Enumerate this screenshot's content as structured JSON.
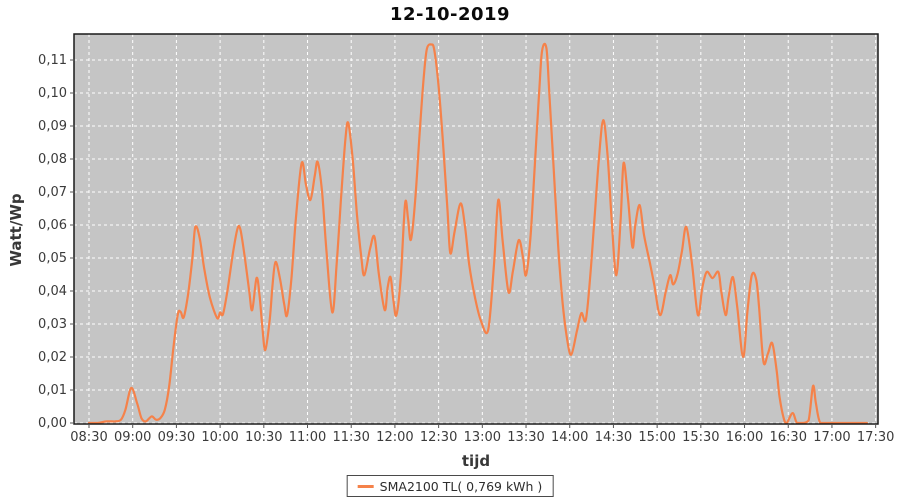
{
  "title": "12-10-2019",
  "legend": {
    "label": "SMA2100 TL( 0,769 kWh )"
  },
  "colors": {
    "series": "#F5824A",
    "plot_background": "#C5C5C5",
    "gridline": "#FFFFFF",
    "plot_border": "#1a1a1a",
    "tick_text": "#3b3b3b"
  },
  "chart_data": {
    "type": "line",
    "title": "12-10-2019",
    "xlabel": "tijd",
    "ylabel": "Watt/Wp",
    "legend_position": "bottom-center",
    "grid": true,
    "x_tick_labels": [
      "08:30",
      "09:00",
      "09:30",
      "10:00",
      "10:30",
      "11:00",
      "11:30",
      "12:00",
      "12:30",
      "13:00",
      "13:30",
      "14:00",
      "14:30",
      "15:00",
      "15:30",
      "16:00",
      "16:30",
      "17:00",
      "17:30"
    ],
    "y_tick_labels": [
      "0,00",
      "0,01",
      "0,02",
      "0,03",
      "0,04",
      "0,05",
      "0,06",
      "0,07",
      "0,08",
      "0,09",
      "0,10",
      "0,11"
    ],
    "y_tick_values": [
      0,
      0.01,
      0.02,
      0.03,
      0.04,
      0.05,
      0.06,
      0.07,
      0.08,
      0.09,
      0.1,
      0.11
    ],
    "ylim": [
      0,
      0.118
    ],
    "x_unit": "minutes after 08:30",
    "series": [
      {
        "name": "SMA2100 TL( 0,769 kWh )",
        "color": "#F5824A",
        "points": [
          [
            0,
            0
          ],
          [
            6,
            0
          ],
          [
            12,
            0.0005
          ],
          [
            18,
            0.0005
          ],
          [
            22,
            0.001
          ],
          [
            25,
            0.004
          ],
          [
            29,
            0.0106
          ],
          [
            33,
            0.006
          ],
          [
            36,
            0.0015
          ],
          [
            39,
            0.0005
          ],
          [
            43,
            0.002
          ],
          [
            46,
            0.001
          ],
          [
            49,
            0.0015
          ],
          [
            52,
            0.004
          ],
          [
            55,
            0.011
          ],
          [
            58,
            0.023
          ],
          [
            61,
            0.033
          ],
          [
            63,
            0.0336
          ],
          [
            65,
            0.032
          ],
          [
            68,
            0.039
          ],
          [
            71,
            0.05
          ],
          [
            73,
            0.0594
          ],
          [
            76,
            0.056
          ],
          [
            79,
            0.047
          ],
          [
            83,
            0.038
          ],
          [
            88,
            0.0318
          ],
          [
            90,
            0.0335
          ],
          [
            92,
            0.033
          ],
          [
            95,
            0.04
          ],
          [
            99,
            0.052
          ],
          [
            102,
            0.059
          ],
          [
            104,
            0.0585
          ],
          [
            107,
            0.05
          ],
          [
            110,
            0.04
          ],
          [
            112,
            0.0342
          ],
          [
            115,
            0.0439
          ],
          [
            117,
            0.039
          ],
          [
            119,
            0.029
          ],
          [
            121,
            0.0221
          ],
          [
            124,
            0.031
          ],
          [
            126,
            0.042
          ],
          [
            128,
            0.0488
          ],
          [
            131,
            0.044
          ],
          [
            134,
            0.036
          ],
          [
            136,
            0.0327
          ],
          [
            139,
            0.044
          ],
          [
            142,
            0.062
          ],
          [
            146,
            0.0788
          ],
          [
            149,
            0.072
          ],
          [
            152,
            0.0676
          ],
          [
            155,
            0.075
          ],
          [
            157,
            0.0791
          ],
          [
            160,
            0.07
          ],
          [
            163,
            0.052
          ],
          [
            167,
            0.0335
          ],
          [
            170,
            0.048
          ],
          [
            173,
            0.068
          ],
          [
            176,
            0.086
          ],
          [
            178,
            0.0909
          ],
          [
            181,
            0.08
          ],
          [
            184,
            0.063
          ],
          [
            187,
            0.05
          ],
          [
            189,
            0.0448
          ],
          [
            193,
            0.053
          ],
          [
            196,
            0.0564
          ],
          [
            199,
            0.045
          ],
          [
            203,
            0.0342
          ],
          [
            205,
            0.041
          ],
          [
            207,
            0.0442
          ],
          [
            209,
            0.037
          ],
          [
            211,
            0.0327
          ],
          [
            214,
            0.044
          ],
          [
            217,
            0.0665
          ],
          [
            219,
            0.062
          ],
          [
            221,
            0.0555
          ],
          [
            224,
            0.068
          ],
          [
            227,
            0.088
          ],
          [
            230,
            0.106
          ],
          [
            232,
            0.1135
          ],
          [
            235,
            0.1147
          ],
          [
            237,
            0.113
          ],
          [
            240,
            0.102
          ],
          [
            243,
            0.085
          ],
          [
            246,
            0.065
          ],
          [
            248,
            0.0515
          ],
          [
            251,
            0.058
          ],
          [
            255,
            0.0665
          ],
          [
            258,
            0.06
          ],
          [
            261,
            0.048
          ],
          [
            265,
            0.038
          ],
          [
            269,
            0.031
          ],
          [
            274,
            0.0282
          ],
          [
            278,
            0.048
          ],
          [
            281,
            0.0676
          ],
          [
            284,
            0.055
          ],
          [
            288,
            0.0397
          ],
          [
            291,
            0.046
          ],
          [
            295,
            0.0554
          ],
          [
            298,
            0.05
          ],
          [
            300,
            0.0448
          ],
          [
            303,
            0.056
          ],
          [
            306,
            0.078
          ],
          [
            309,
            0.1
          ],
          [
            311,
            0.1128
          ],
          [
            314,
            0.1136
          ],
          [
            316,
            0.1
          ],
          [
            319,
            0.077
          ],
          [
            322,
            0.054
          ],
          [
            325,
            0.037
          ],
          [
            328,
            0.026
          ],
          [
            331,
            0.0207
          ],
          [
            335,
            0.028
          ],
          [
            338,
            0.0333
          ],
          [
            341,
            0.0312
          ],
          [
            344,
            0.044
          ],
          [
            347,
            0.062
          ],
          [
            350,
            0.08
          ],
          [
            353,
            0.0918
          ],
          [
            356,
            0.081
          ],
          [
            359,
            0.06
          ],
          [
            362,
            0.0448
          ],
          [
            365,
            0.062
          ],
          [
            367,
            0.0788
          ],
          [
            370,
            0.068
          ],
          [
            373,
            0.0533
          ],
          [
            375,
            0.06
          ],
          [
            378,
            0.066
          ],
          [
            381,
            0.057
          ],
          [
            385,
            0.0485
          ],
          [
            388,
            0.042
          ],
          [
            392,
            0.0327
          ],
          [
            396,
            0.04
          ],
          [
            399,
            0.0448
          ],
          [
            401,
            0.042
          ],
          [
            404,
            0.0451
          ],
          [
            407,
            0.052
          ],
          [
            410,
            0.0594
          ],
          [
            414,
            0.048
          ],
          [
            418,
            0.0327
          ],
          [
            421,
            0.041
          ],
          [
            424,
            0.0458
          ],
          [
            428,
            0.0439
          ],
          [
            432,
            0.0458
          ],
          [
            434,
            0.04
          ],
          [
            437,
            0.0327
          ],
          [
            439,
            0.038
          ],
          [
            442,
            0.0442
          ],
          [
            445,
            0.035
          ],
          [
            449,
            0.02
          ],
          [
            452,
            0.034
          ],
          [
            455,
            0.0448
          ],
          [
            458,
            0.0435
          ],
          [
            460,
            0.035
          ],
          [
            463,
            0.0185
          ],
          [
            466,
            0.021
          ],
          [
            469,
            0.0242
          ],
          [
            472,
            0.016
          ],
          [
            474,
            0.008
          ],
          [
            477,
            0.0012
          ],
          [
            479,
            0
          ],
          [
            483,
            0.003
          ],
          [
            486,
            0
          ],
          [
            490,
            0
          ],
          [
            494,
            0.0008
          ],
          [
            497,
            0.0112
          ],
          [
            499,
            0.006
          ],
          [
            502,
            0
          ],
          [
            508,
            0
          ],
          [
            516,
            0
          ],
          [
            525,
            0
          ],
          [
            534,
            0
          ]
        ]
      }
    ]
  }
}
